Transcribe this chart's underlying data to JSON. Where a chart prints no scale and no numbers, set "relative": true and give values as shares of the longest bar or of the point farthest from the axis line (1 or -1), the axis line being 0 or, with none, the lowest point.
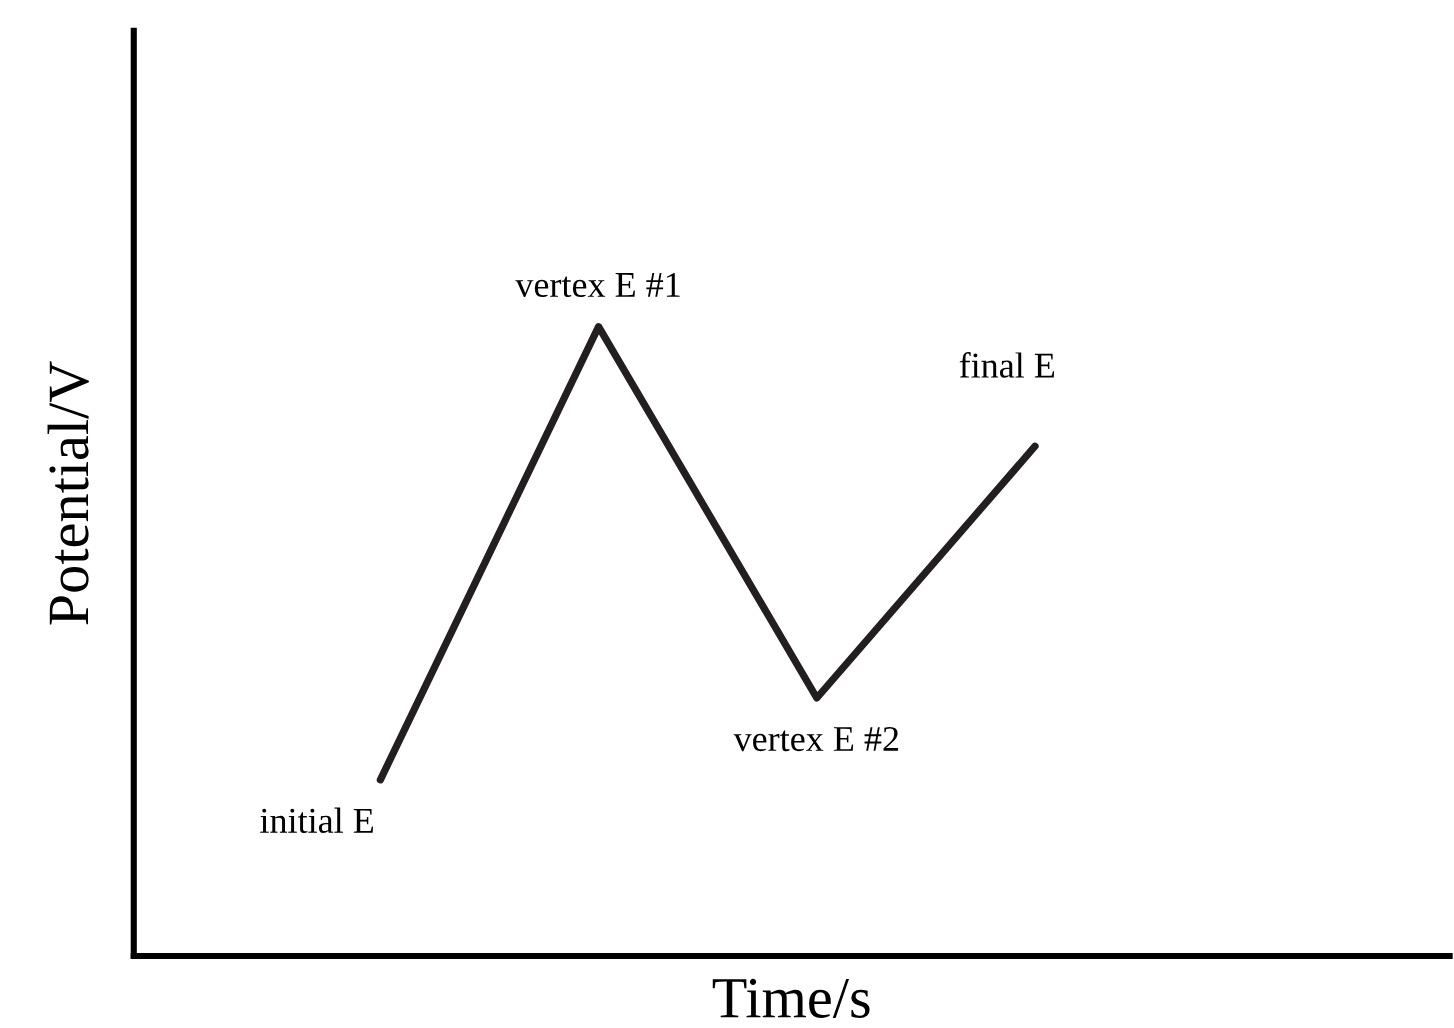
{
  "chart_data": {
    "type": "line",
    "relative": true,
    "xlabel": "Time/s",
    "ylabel": "Potential/V",
    "categories": [
      null,
      null,
      null,
      null
    ],
    "series": [
      {
        "color": "#231f20",
        "values": [
          0.28,
          1,
          0.41,
          0.81
        ]
      }
    ],
    "annotations": [
      "initial E",
      "vertex E #1",
      "vertex E #2",
      "final E"
    ],
    "marker": "none",
    "line_style": "solid"
  }
}
